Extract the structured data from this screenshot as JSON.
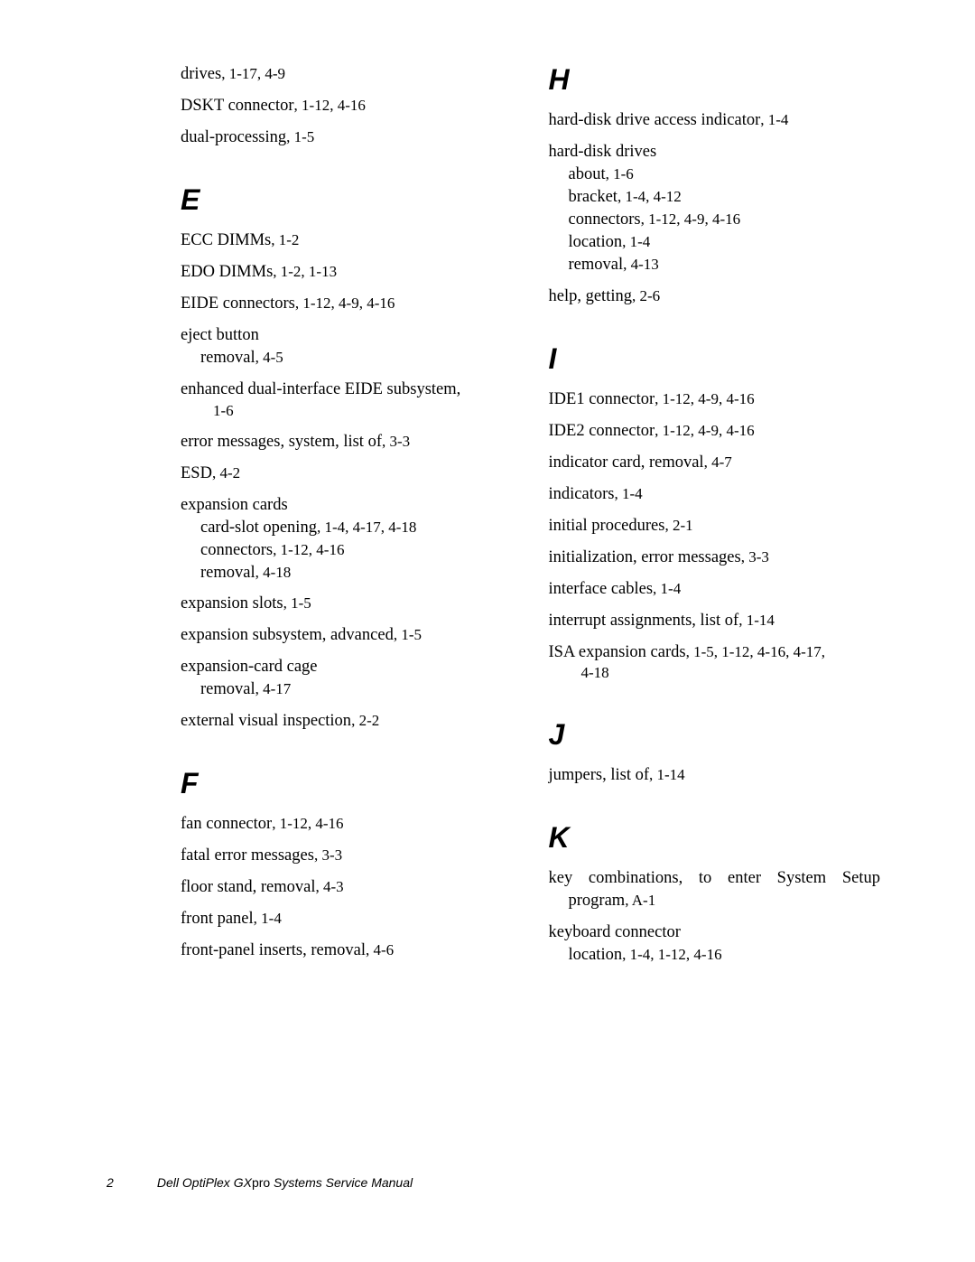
{
  "footer": {
    "page_number": "2",
    "title_part1": "Dell OptiPlex GX",
    "title_part2": "pro",
    "title_part3": " Systems Service Manual"
  },
  "left": [
    {
      "type": "entry",
      "text": "drives",
      "refs": ", 1-17, 4-9"
    },
    {
      "type": "entry",
      "text": "DSKT connector",
      "refs": ", 1-12, 4-16"
    },
    {
      "type": "entry",
      "text": "dual-processing",
      "refs": ", 1-5"
    },
    {
      "type": "letter",
      "text": "E"
    },
    {
      "type": "entry",
      "text": "ECC DIMMs",
      "refs": ", 1-2"
    },
    {
      "type": "entry",
      "text": "EDO DIMMs",
      "refs": ", 1-2, 1-13"
    },
    {
      "type": "entry",
      "text": "EIDE connectors",
      "refs": ", 1-12, 4-9, 4-16"
    },
    {
      "type": "entry",
      "text": "eject button",
      "subs": [
        {
          "text": "removal",
          "refs": ", 4-5"
        }
      ]
    },
    {
      "type": "entry",
      "text": "enhanced dual-interface EIDE subsystem",
      "refs": "",
      "cont_refs": "1-6",
      "wide": true
    },
    {
      "type": "entry",
      "text": "error messages, system, list of",
      "refs": ", 3-3"
    },
    {
      "type": "entry",
      "text": "ESD",
      "refs": ", 4-2"
    },
    {
      "type": "entry",
      "text": "expansion cards",
      "subs": [
        {
          "text": "card-slot opening",
          "refs": ", 1-4, 4-17, 4-18"
        },
        {
          "text": "connectors",
          "refs": ", 1-12, 4-16"
        },
        {
          "text": "removal",
          "refs": ", 4-18"
        }
      ]
    },
    {
      "type": "entry",
      "text": "expansion slots",
      "refs": ", 1-5"
    },
    {
      "type": "entry",
      "text": "expansion subsystem, advanced",
      "refs": ", 1-5"
    },
    {
      "type": "entry",
      "text": "expansion-card cage",
      "subs": [
        {
          "text": "removal",
          "refs": ", 4-17"
        }
      ]
    },
    {
      "type": "entry",
      "text": "external visual inspection",
      "refs": ", 2-2"
    },
    {
      "type": "letter",
      "text": "F"
    },
    {
      "type": "entry",
      "text": "fan connector",
      "refs": ", 1-12, 4-16"
    },
    {
      "type": "entry",
      "text": "fatal error messages",
      "refs": ", 3-3"
    },
    {
      "type": "entry",
      "text": "floor stand, removal",
      "refs": ", 4-3"
    },
    {
      "type": "entry",
      "text": "front panel",
      "refs": ", 1-4"
    },
    {
      "type": "entry",
      "text": "front-panel inserts, removal",
      "refs": ", 4-6"
    }
  ],
  "right": [
    {
      "type": "letter",
      "text": "H",
      "first": true
    },
    {
      "type": "entry",
      "text": "hard-disk drive access indicator",
      "refs": ", 1-4"
    },
    {
      "type": "entry",
      "text": "hard-disk drives",
      "subs": [
        {
          "text": "about",
          "refs": ", 1-6"
        },
        {
          "text": "bracket",
          "refs": ", 1-4, 4-12"
        },
        {
          "text": "connectors",
          "refs": ", 1-12, 4-9, 4-16"
        },
        {
          "text": "location",
          "refs": ", 1-4"
        },
        {
          "text": "removal",
          "refs": ", 4-13"
        }
      ]
    },
    {
      "type": "entry",
      "text": "help, getting",
      "refs": ", 2-6"
    },
    {
      "type": "letter",
      "text": "I"
    },
    {
      "type": "entry",
      "text": "IDE1 connector",
      "refs": ", 1-12, 4-9, 4-16"
    },
    {
      "type": "entry",
      "text": "IDE2 connector",
      "refs": ", 1-12, 4-9, 4-16"
    },
    {
      "type": "entry",
      "text": "indicator card, removal",
      "refs": ", 4-7"
    },
    {
      "type": "entry",
      "text": "indicators",
      "refs": ", 1-4"
    },
    {
      "type": "entry",
      "text": "initial procedures",
      "refs": ", 2-1"
    },
    {
      "type": "entry",
      "text": "initialization, error messages",
      "refs": ", 3-3"
    },
    {
      "type": "entry",
      "text": "interface cables",
      "refs": ", 1-4"
    },
    {
      "type": "entry",
      "text": "interrupt assignments, list of",
      "refs": ", 1-14"
    },
    {
      "type": "entry",
      "text": "ISA expansion cards",
      "refs": ", 1-5, 1-12, 4-16, 4-17,",
      "cont_refs": "4-18",
      "wide": true
    },
    {
      "type": "letter",
      "text": "J"
    },
    {
      "type": "entry",
      "text": "jumpers, list of",
      "refs": ", 1-14"
    },
    {
      "type": "letter",
      "text": "K"
    },
    {
      "type": "entry",
      "text": "key combinations, to enter System Setup program",
      "refs": ", A-1",
      "wrap_sub": true
    },
    {
      "type": "entry",
      "text": "keyboard connector",
      "subs": [
        {
          "text": "location",
          "refs": ", 1-4, 1-12, 4-16"
        }
      ]
    }
  ]
}
